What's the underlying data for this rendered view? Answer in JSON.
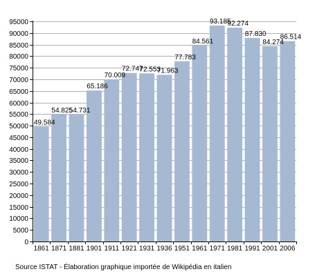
{
  "chart_data": {
    "type": "bar",
    "categories": [
      "1861",
      "1871",
      "1881",
      "1901",
      "1911",
      "1921",
      "1931",
      "1936",
      "1951",
      "1961",
      "1971",
      "1981",
      "1991",
      "2001",
      "2006"
    ],
    "values": [
      49584,
      54825,
      54731,
      65186,
      70009,
      72747,
      72553,
      71963,
      77783,
      84561,
      93185,
      92274,
      87830,
      84274,
      86514
    ],
    "data_labels": [
      "49.584",
      "54.825",
      "54.731",
      "65.186",
      "70.009",
      "72.747",
      "72.553",
      "71.963",
      "77.783",
      "84.561",
      "93.185",
      "92.274",
      "87.830",
      "84.274",
      "86.514"
    ],
    "yticks": [
      "0",
      "5000",
      "10000",
      "15000",
      "20000",
      "25000",
      "30000",
      "35000",
      "40000",
      "45000",
      "50000",
      "55000",
      "60000",
      "65000",
      "70000",
      "75000",
      "80000",
      "85000",
      "90000",
      "95000"
    ],
    "ylim": [
      0,
      95000
    ],
    "grid": true,
    "bar_color": "#a5b9d2",
    "grid_color": "#b0b0b0",
    "title": "",
    "xlabel": "",
    "ylabel": ""
  },
  "source": "Source ISTAT - Élaboration graphique importée de Wikipédia en italien"
}
